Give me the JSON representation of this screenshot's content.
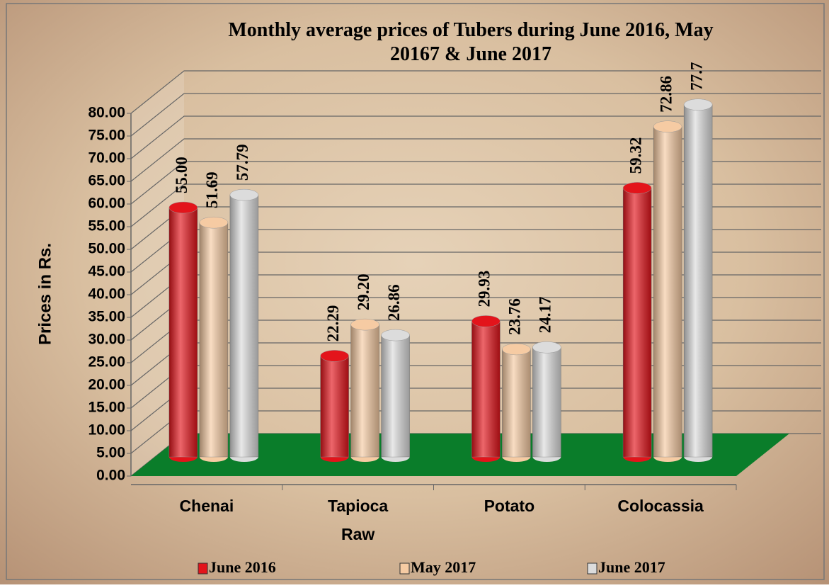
{
  "chart_data": {
    "type": "bar3d",
    "title": "Monthly average prices of Tubers during  June 2016, May 20167 & June 2017",
    "y_label": "Prices in Rs.",
    "categories": [
      "Chenai",
      "Tapioca Raw",
      "Potato",
      "Colocassia"
    ],
    "series": [
      {
        "name": "June 2016",
        "color": "#e3141b",
        "values": [
          55,
          22.29,
          29.93,
          59.32
        ],
        "value_labels": [
          "55.00",
          "22.29",
          "29.93",
          "59.32"
        ]
      },
      {
        "name": "May 2017",
        "color": "#f6cba3",
        "values": [
          51.69,
          29.2,
          23.76,
          72.86
        ],
        "value_labels": [
          "51.69",
          "29.20",
          "23.76",
          "72.86"
        ]
      },
      {
        "name": "June 2017",
        "color": "#dcdcdc",
        "values": [
          57.79,
          26.86,
          24.17,
          77.7
        ],
        "value_labels": [
          "57.79",
          "26.86",
          "24.17",
          "77.7"
        ]
      }
    ],
    "ylim": [
      0,
      80
    ],
    "yticks": [
      {
        "value": 0,
        "label": "0.00"
      },
      {
        "value": 5,
        "label": "5.00"
      },
      {
        "value": 10,
        "label": "10.00"
      },
      {
        "value": 15,
        "label": "15.00"
      },
      {
        "value": 20,
        "label": "20.00"
      },
      {
        "value": 25,
        "label": "25.00"
      },
      {
        "value": 30,
        "label": "30.00"
      },
      {
        "value": 35,
        "label": "35.00"
      },
      {
        "value": 40,
        "label": "40.00"
      },
      {
        "value": 45,
        "label": "45.00"
      },
      {
        "value": 50,
        "label": "50.00"
      },
      {
        "value": 55,
        "label": "55.00"
      },
      {
        "value": 60,
        "label": "60.00"
      },
      {
        "value": 65,
        "label": "65.00"
      },
      {
        "value": 70,
        "label": "70.00"
      },
      {
        "value": 75,
        "label": "75.00"
      },
      {
        "value": 80,
        "label": "80.00"
      }
    ],
    "grid": true,
    "floor_color": "#0a7d2a",
    "legend": "bottom"
  }
}
